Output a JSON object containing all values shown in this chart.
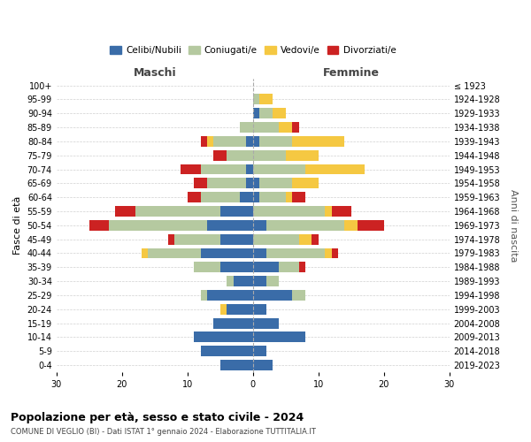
{
  "age_groups": [
    "0-4",
    "5-9",
    "10-14",
    "15-19",
    "20-24",
    "25-29",
    "30-34",
    "35-39",
    "40-44",
    "45-49",
    "50-54",
    "55-59",
    "60-64",
    "65-69",
    "70-74",
    "75-79",
    "80-84",
    "85-89",
    "90-94",
    "95-99",
    "100+"
  ],
  "birth_years": [
    "2019-2023",
    "2014-2018",
    "2009-2013",
    "2004-2008",
    "1999-2003",
    "1994-1998",
    "1989-1993",
    "1984-1988",
    "1979-1983",
    "1974-1978",
    "1969-1973",
    "1964-1968",
    "1959-1963",
    "1954-1958",
    "1949-1953",
    "1944-1948",
    "1939-1943",
    "1934-1938",
    "1929-1933",
    "1924-1928",
    "≤ 1923"
  ],
  "colors": {
    "celibi": "#3a6ca8",
    "coniugati": "#b5c9a0",
    "vedovi": "#f5c842",
    "divorziati": "#cc2222"
  },
  "males": {
    "celibi": [
      5,
      8,
      9,
      6,
      4,
      7,
      3,
      5,
      8,
      5,
      7,
      5,
      2,
      1,
      1,
      0,
      1,
      0,
      0,
      0,
      0
    ],
    "coniugati": [
      0,
      0,
      0,
      0,
      0,
      1,
      1,
      4,
      8,
      7,
      15,
      13,
      6,
      6,
      7,
      4,
      5,
      2,
      0,
      0,
      0
    ],
    "vedovi": [
      0,
      0,
      0,
      0,
      1,
      0,
      0,
      0,
      1,
      0,
      0,
      0,
      0,
      0,
      0,
      0,
      1,
      0,
      0,
      0,
      0
    ],
    "divorziati": [
      0,
      0,
      0,
      0,
      0,
      0,
      0,
      0,
      0,
      1,
      3,
      3,
      2,
      2,
      3,
      2,
      1,
      0,
      0,
      0,
      0
    ]
  },
  "females": {
    "celibi": [
      3,
      2,
      8,
      4,
      2,
      6,
      2,
      4,
      2,
      0,
      2,
      0,
      1,
      1,
      0,
      0,
      1,
      0,
      1,
      0,
      0
    ],
    "coniugati": [
      0,
      0,
      0,
      0,
      0,
      2,
      2,
      3,
      9,
      7,
      12,
      11,
      4,
      5,
      8,
      5,
      5,
      4,
      2,
      1,
      0
    ],
    "vedovi": [
      0,
      0,
      0,
      0,
      0,
      0,
      0,
      0,
      1,
      2,
      2,
      1,
      1,
      4,
      9,
      5,
      8,
      2,
      2,
      2,
      0
    ],
    "divorziati": [
      0,
      0,
      0,
      0,
      0,
      0,
      0,
      1,
      1,
      1,
      4,
      3,
      2,
      0,
      0,
      0,
      0,
      1,
      0,
      0,
      0
    ]
  },
  "xlim": 30,
  "title_main": "Popolazione per età, sesso e stato civile - 2024",
  "title_sub": "COMUNE DI VEGLIO (BI) - Dati ISTAT 1° gennaio 2024 - Elaborazione TUTTITALIA.IT",
  "ylabel_left": "Fasce di età",
  "ylabel_right": "Anni di nascita",
  "label_maschi": "Maschi",
  "label_femmine": "Femmine",
  "legend_labels": [
    "Celibi/Nubili",
    "Coniugati/e",
    "Vedovi/e",
    "Divorziati/e"
  ],
  "background_color": "#ffffff",
  "grid_color": "#cccccc"
}
